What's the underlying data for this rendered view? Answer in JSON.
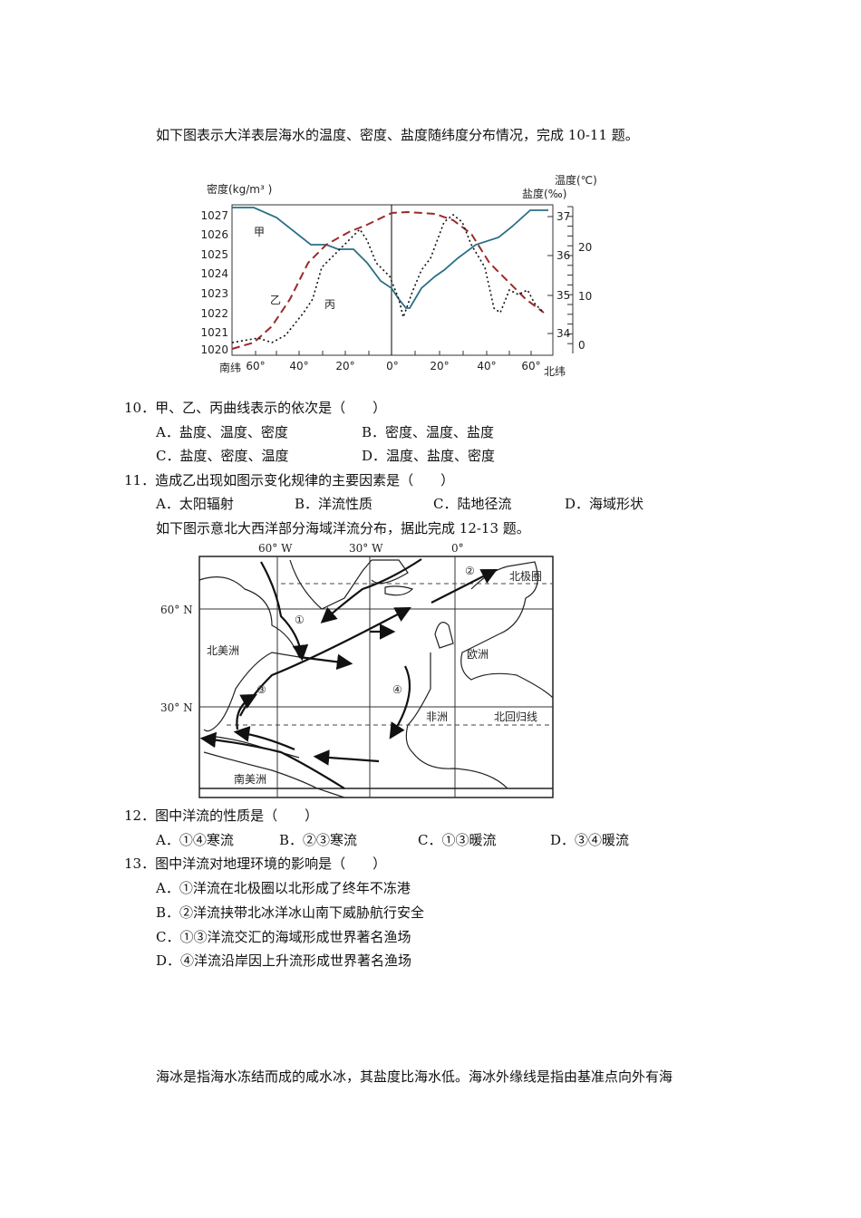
{
  "intro1": "如下图表示大洋表层海水的温度、密度、盐度随纬度分布情况，完成 10-11 题。",
  "chart": {
    "left_axis_title": "密度(kg/m³ )",
    "right_axis_title_1": "温度(℃)",
    "right_axis_title_2": "盐度(‰)",
    "left_ticks": [
      "1027",
      "1026",
      "1025",
      "1024",
      "1023",
      "1022",
      "1021",
      "1020"
    ],
    "salinity_ticks": [
      "37",
      "36",
      "35",
      "34"
    ],
    "temp_ticks": [
      "20",
      "10",
      "0"
    ],
    "x_ticks": [
      "60°",
      "40°",
      "20°",
      "0°",
      "20°",
      "40°",
      "60°"
    ],
    "x_south": "南纬",
    "x_north": "北纬",
    "curve_labels": {
      "jia": "甲",
      "yi": "乙",
      "bing": "丙"
    },
    "colors": {
      "jia": "#2a6f86",
      "yi": "#9b2a2a",
      "bing": "#111111"
    }
  },
  "q10": {
    "stem": "10．甲、乙、丙曲线表示的依次是（　　）",
    "options": [
      "A．盐度、温度、密度",
      "B．密度、温度、盐度",
      "C．盐度、密度、温度",
      "D．温度、盐度、密度"
    ]
  },
  "q11": {
    "stem": "11．造成乙出现如图示变化规律的主要因素是（　　）",
    "options": [
      "A．太阳辐射",
      "B．洋流性质",
      "C．陆地径流",
      "D．海域形状"
    ]
  },
  "intro2": "如下图示意北大西洋部分海域洋流分布，据此完成 12-13 题。",
  "map": {
    "lon_labels": [
      "60° W",
      "30° W",
      "0°"
    ],
    "lat_labels": [
      "60° N",
      "30° N"
    ],
    "labels": {
      "arctic": "北极圈",
      "tropic": "北回归线",
      "na": "北美洲",
      "eu": "欧洲",
      "af": "非洲",
      "sa": "南美洲"
    },
    "currents": [
      "①",
      "②",
      "③",
      "④"
    ]
  },
  "q12": {
    "stem": "12．图中洋流的性质是（　　）",
    "options": [
      "A．①④寒流",
      "B．②③寒流",
      "C．①③暖流",
      "D．③④暖流"
    ]
  },
  "q13": {
    "stem": "13．图中洋流对地理环境的影响是（　　）",
    "options": [
      "A．①洋流在北极圈以北形成了终年不冻港",
      "B．②洋流挟带北冰洋冰山南下威胁航行安全",
      "C．①③洋流交汇的海域形成世界著名渔场",
      "D．④洋流沿岸因上升流形成世界著名渔场"
    ]
  },
  "intro3": "海冰是指海水冻结而成的咸水冰，其盐度比海水低。海冰外缘线是指由基准点向外有海"
}
